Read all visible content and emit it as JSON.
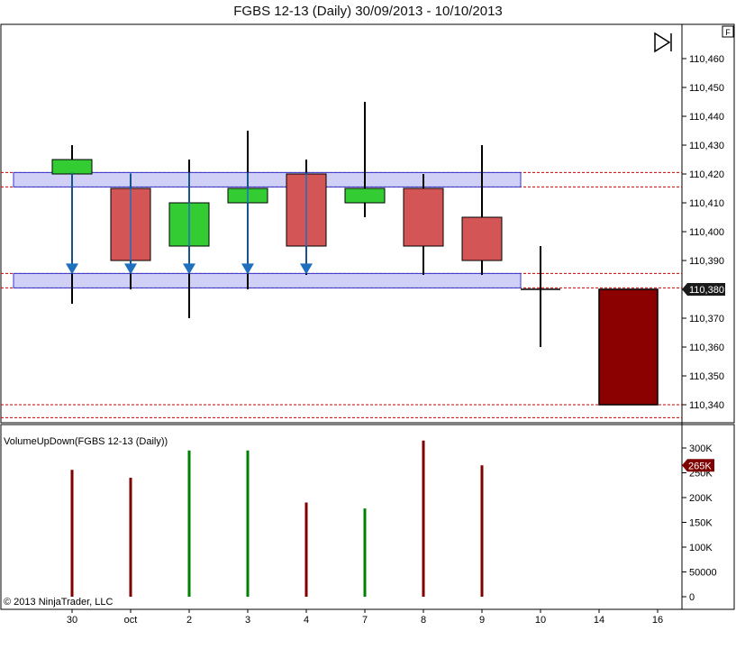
{
  "title": "FGBS 12-13 (Daily)  30/09/2013 - 10/10/2013",
  "copyright": "© 2013 NinjaTrader, LLC",
  "f_button": "F",
  "colors": {
    "up": "#33cc33",
    "down": "#d35555",
    "bar_line": "#000000",
    "band_fill": "#c8c8f5",
    "band_stroke": "#3333cc",
    "ref_line": "#cc0000",
    "arrow": "#1e6fbf",
    "big_candle": "#8b0000",
    "vol_up": "#008000",
    "vol_down": "#800000",
    "price_marker_bg": "#1a1a1a"
  },
  "chart_data": [
    {
      "type": "candlestick",
      "title": "FGBS 12-13 (Daily)  30/09/2013 - 10/10/2013",
      "x_ticks": [
        "30",
        "oct",
        "2",
        "3",
        "4",
        "7",
        "8",
        "9",
        "10",
        "14",
        "16"
      ],
      "y_ticks": [
        "110,460",
        "110,450",
        "110,440",
        "110,430",
        "110,420",
        "110,410",
        "110,400",
        "110,390",
        "110,380",
        "110,370",
        "110,360",
        "110,350",
        "110,340"
      ],
      "ylim": [
        110.3355,
        110.4785
      ],
      "current_price_label": "110,380",
      "candles": [
        {
          "x": "30",
          "open": 110.42,
          "high": 110.43,
          "low": 110.375,
          "close": 110.425
        },
        {
          "x": "oct",
          "open": 110.415,
          "high": 110.42,
          "low": 110.38,
          "close": 110.39
        },
        {
          "x": "2",
          "open": 110.395,
          "high": 110.425,
          "low": 110.37,
          "close": 110.41
        },
        {
          "x": "3",
          "open": 110.41,
          "high": 110.435,
          "low": 110.38,
          "close": 110.415
        },
        {
          "x": "4",
          "open": 110.42,
          "high": 110.425,
          "low": 110.385,
          "close": 110.395
        },
        {
          "x": "7",
          "open": 110.41,
          "high": 110.445,
          "low": 110.405,
          "close": 110.415
        },
        {
          "x": "8",
          "open": 110.415,
          "high": 110.42,
          "low": 110.385,
          "close": 110.395
        },
        {
          "x": "9",
          "open": 110.405,
          "high": 110.43,
          "low": 110.385,
          "close": 110.39
        },
        {
          "x": "10",
          "open": 110.38,
          "high": 110.395,
          "low": 110.36,
          "close": 110.38
        }
      ],
      "projection_candle": {
        "x_from": "14",
        "x_to": "16",
        "top": 110.38,
        "bottom": 110.34
      },
      "zones": [
        {
          "top": 110.4205,
          "bottom": 110.4155
        },
        {
          "top": 110.3855,
          "bottom": 110.3805
        }
      ],
      "ref_lines": [
        110.4205,
        110.4155,
        110.3855,
        110.3805,
        110.34,
        110.3355
      ],
      "arrows": [
        {
          "x": "30",
          "from": 110.4205,
          "to": 110.3855
        },
        {
          "x": "oct",
          "from": 110.4205,
          "to": 110.3855
        },
        {
          "x": "2",
          "from": 110.4205,
          "to": 110.3855
        },
        {
          "x": "3",
          "from": 110.4205,
          "to": 110.3855
        },
        {
          "x": "4",
          "from": 110.4205,
          "to": 110.3855
        }
      ]
    },
    {
      "type": "bar",
      "title": "VolumeUpDown(FGBS 12-13 (Daily))",
      "y_ticks": [
        "300K",
        "250K",
        "200K",
        "150K",
        "100K",
        "50000",
        "0"
      ],
      "ylim": [
        0,
        320000
      ],
      "current_value_label": "265K",
      "categories": [
        "30",
        "oct",
        "2",
        "3",
        "4",
        "7",
        "8",
        "9"
      ],
      "values": [
        256000,
        240000,
        295000,
        295000,
        190000,
        178000,
        315000,
        265000
      ],
      "direction": [
        "down",
        "down",
        "up",
        "up",
        "down",
        "up",
        "down",
        "down"
      ]
    }
  ]
}
